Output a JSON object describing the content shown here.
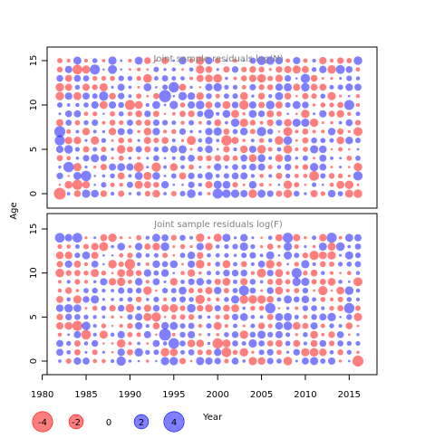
{
  "figure": {
    "ylabel": "Age",
    "xlabel": "Year"
  },
  "colors": {
    "positive": "#0000ff",
    "negative": "#ff0000",
    "panel_title": "#808080",
    "axis": "#000000"
  },
  "chart_data": [
    {
      "type": "scatter",
      "subtype": "bubble",
      "title": "Joint sample residuals log(N)",
      "xlabel": "",
      "ylabel": "Age",
      "xlim": [
        1982,
        2016
      ],
      "ylim": [
        0,
        15
      ],
      "x_ticks": [
        1980,
        1985,
        1990,
        1995,
        2000,
        2005,
        2010,
        2015
      ],
      "y_ticks": [
        0,
        5,
        10,
        15
      ],
      "grid": false,
      "note": "Residual bubbles for every year 1982-2016 and age 0-15; blue = positive, red = negative, area proportional to |residual|.",
      "points": [
        {
          "x": 1982,
          "y": 0,
          "v": -4.2
        },
        {
          "x": 1982,
          "y": 7,
          "v": 3.6
        },
        {
          "x": 1982,
          "y": 6,
          "v": 3.0
        },
        {
          "x": 1983,
          "y": 3,
          "v": 3.2
        },
        {
          "x": 1984,
          "y": 1,
          "v": -3.0
        },
        {
          "x": 1985,
          "y": 2,
          "v": 3.2
        },
        {
          "x": 1984,
          "y": 14,
          "v": -2.8
        },
        {
          "x": 1986,
          "y": 14,
          "v": 3.0
        },
        {
          "x": 1987,
          "y": 11,
          "v": 2.6
        },
        {
          "x": 1988,
          "y": 14,
          "v": 2.4
        },
        {
          "x": 1991,
          "y": 3,
          "v": -2.8
        },
        {
          "x": 1990,
          "y": 10,
          "v": -3.0
        },
        {
          "x": 1994,
          "y": 11,
          "v": 4.4
        },
        {
          "x": 1995,
          "y": 12,
          "v": 3.2
        },
        {
          "x": 1993,
          "y": 3,
          "v": -2.6
        },
        {
          "x": 1997,
          "y": 6,
          "v": -2.4
        },
        {
          "x": 1999,
          "y": 9,
          "v": 2.8
        },
        {
          "x": 2000,
          "y": 0,
          "v": 3.0
        },
        {
          "x": 2001,
          "y": 6,
          "v": -3.2
        },
        {
          "x": 2003,
          "y": 10,
          "v": -2.6
        },
        {
          "x": 2005,
          "y": 7,
          "v": 2.6
        },
        {
          "x": 2005,
          "y": 15,
          "v": 2.4
        },
        {
          "x": 2008,
          "y": 7,
          "v": -2.4
        },
        {
          "x": 2010,
          "y": 13,
          "v": 2.6
        },
        {
          "x": 2011,
          "y": 2,
          "v": -2.8
        },
        {
          "x": 2014,
          "y": 14,
          "v": 2.4
        },
        {
          "x": 2015,
          "y": 10,
          "v": 3.0
        },
        {
          "x": 2016,
          "y": 7,
          "v": -2.4
        },
        {
          "x": 2016,
          "y": 2,
          "v": 2.6
        },
        {
          "x": 2013,
          "y": 14,
          "v": -2.2
        }
      ]
    },
    {
      "type": "scatter",
      "subtype": "bubble",
      "title": "Joint sample residuals log(F)",
      "xlabel": "Year",
      "ylabel": "Age",
      "xlim": [
        1982,
        2016
      ],
      "ylim": [
        0,
        14
      ],
      "x_ticks": [
        1980,
        1985,
        1990,
        1995,
        2000,
        2005,
        2010,
        2015
      ],
      "y_ticks": [
        0,
        5,
        10,
        15
      ],
      "grid": false,
      "note": "Residual bubbles for every year 1982-2016 and age 0-14; blue = positive, red = negative, area proportional to |residual|.",
      "points": [
        {
          "x": 1982,
          "y": 14,
          "v": 2.8
        },
        {
          "x": 1984,
          "y": 14,
          "v": 2.8
        },
        {
          "x": 1984,
          "y": 4,
          "v": -3.0
        },
        {
          "x": 1985,
          "y": 3,
          "v": -2.8
        },
        {
          "x": 1990,
          "y": 11,
          "v": -3.2
        },
        {
          "x": 1993,
          "y": 5,
          "v": -2.6
        },
        {
          "x": 1994,
          "y": 3,
          "v": 4.2
        },
        {
          "x": 1995,
          "y": 2,
          "v": 3.4
        },
        {
          "x": 1998,
          "y": 7,
          "v": -2.6
        },
        {
          "x": 2000,
          "y": 2,
          "v": -3.2
        },
        {
          "x": 2001,
          "y": 1,
          "v": -2.8
        },
        {
          "x": 2003,
          "y": 8,
          "v": 3.0
        },
        {
          "x": 2006,
          "y": 6,
          "v": 3.2
        },
        {
          "x": 2008,
          "y": 14,
          "v": 3.0
        },
        {
          "x": 2009,
          "y": 10,
          "v": 3.0
        },
        {
          "x": 2011,
          "y": 12,
          "v": -2.6
        },
        {
          "x": 2013,
          "y": 14,
          "v": 3.0
        },
        {
          "x": 2015,
          "y": 6,
          "v": 3.2
        },
        {
          "x": 2016,
          "y": 0,
          "v": -3.6
        },
        {
          "x": 2016,
          "y": 9,
          "v": -2.4
        },
        {
          "x": 2012,
          "y": 8,
          "v": -2.6
        },
        {
          "x": 1989,
          "y": 0,
          "v": 2.6
        },
        {
          "x": 1987,
          "y": 13,
          "v": -2.4
        },
        {
          "x": 2005,
          "y": 10,
          "v": -2.4
        }
      ]
    }
  ],
  "legend": {
    "title": "Year",
    "items": [
      {
        "value": -4,
        "label": "-4"
      },
      {
        "value": -2,
        "label": "-2"
      },
      {
        "value": 0,
        "label": "0"
      },
      {
        "value": 2,
        "label": "2"
      },
      {
        "value": 4,
        "label": "4"
      }
    ]
  }
}
